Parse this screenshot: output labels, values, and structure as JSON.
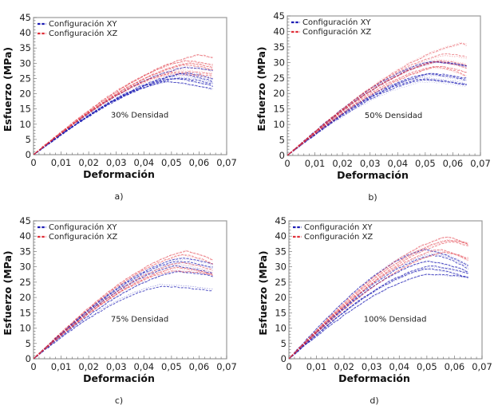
{
  "figure": {
    "colors": {
      "xy": "#1c1cb4",
      "xz": "#e0303a",
      "axis": "#9a9a9a",
      "text": "#222222"
    }
  },
  "chart_data": [
    {
      "type": "line",
      "panel_label": "a)",
      "annotation": "30% Densidad",
      "xlabel": "Deformación",
      "ylabel": "Esfuerzo (MPa)",
      "xlim": [
        0,
        0.07
      ],
      "ylim": [
        0,
        45
      ],
      "xticks": [
        "0",
        "0,01",
        "0,02",
        "0,03",
        "0,04",
        "0,05",
        "0,06",
        "0,07"
      ],
      "yticks": [
        "0",
        "5",
        "10",
        "15",
        "20",
        "25",
        "30",
        "35",
        "40",
        "45"
      ],
      "grid": false,
      "legend": {
        "position": "top-left",
        "entries": [
          "Configuración XY",
          "Configuración XZ"
        ]
      },
      "series": [
        {
          "name": "Configuración XY",
          "curves": [
            {
              "peak_x": 0.048,
              "peak_y": 24.0,
              "end_y": 21.5
            },
            {
              "peak_x": 0.05,
              "peak_y": 25.0,
              "end_y": 22.5
            },
            {
              "peak_x": 0.052,
              "peak_y": 25.5,
              "end_y": 23.5
            },
            {
              "peak_x": 0.053,
              "peak_y": 26.5,
              "end_y": 24.0
            },
            {
              "peak_x": 0.055,
              "peak_y": 27.0,
              "end_y": 25.0
            },
            {
              "peak_x": 0.055,
              "peak_y": 28.5,
              "end_y": 27.5
            }
          ]
        },
        {
          "name": "Configuración XZ",
          "curves": [
            {
              "peak_x": 0.06,
              "peak_y": 33.0,
              "end_y": 32.0
            },
            {
              "peak_x": 0.055,
              "peak_y": 31.0,
              "end_y": 29.5
            },
            {
              "peak_x": 0.056,
              "peak_y": 30.0,
              "end_y": 28.5
            },
            {
              "peak_x": 0.055,
              "peak_y": 29.0,
              "end_y": 27.5
            },
            {
              "peak_x": 0.052,
              "peak_y": 27.5,
              "end_y": 26.5
            },
            {
              "peak_x": 0.05,
              "peak_y": 26.5,
              "end_y": 25.5
            }
          ]
        }
      ]
    },
    {
      "type": "line",
      "panel_label": "b)",
      "annotation": "50% Densidad",
      "xlabel": "Deformación",
      "ylabel": "Esfuerzo (MPa)",
      "xlim": [
        0,
        0.07
      ],
      "ylim": [
        0,
        45
      ],
      "xticks": [
        "0",
        "0,01",
        "0,02",
        "0,03",
        "0,04",
        "0,05",
        "0,06",
        "0,07"
      ],
      "yticks": [
        "0",
        "5",
        "10",
        "15",
        "20",
        "25",
        "30",
        "35",
        "40",
        "45"
      ],
      "grid": false,
      "legend": {
        "position": "top-left",
        "entries": [
          "Configuración XY",
          "Configuración XZ"
        ]
      },
      "series": [
        {
          "name": "Configuración XY",
          "curves": [
            {
              "peak_x": 0.049,
              "peak_y": 24.0,
              "end_y": 22.5
            },
            {
              "peak_x": 0.048,
              "peak_y": 25.0,
              "end_y": 23.0
            },
            {
              "peak_x": 0.05,
              "peak_y": 26.0,
              "end_y": 24.0
            },
            {
              "peak_x": 0.052,
              "peak_y": 26.5,
              "end_y": 25.0
            },
            {
              "peak_x": 0.052,
              "peak_y": 30.5,
              "end_y": 29.0
            },
            {
              "peak_x": 0.054,
              "peak_y": 30.0,
              "end_y": 28.5
            }
          ]
        },
        {
          "name": "Configuración XZ",
          "curves": [
            {
              "peak_x": 0.063,
              "peak_y": 36.0,
              "end_y": 35.5
            },
            {
              "peak_x": 0.057,
              "peak_y": 32.5,
              "end_y": 31.5
            },
            {
              "peak_x": 0.055,
              "peak_y": 31.0,
              "end_y": 29.5
            },
            {
              "peak_x": 0.054,
              "peak_y": 30.0,
              "end_y": 28.0
            },
            {
              "peak_x": 0.055,
              "peak_y": 29.0,
              "end_y": 27.0
            },
            {
              "peak_x": 0.053,
              "peak_y": 28.5,
              "end_y": 25.5
            }
          ]
        }
      ]
    },
    {
      "type": "line",
      "panel_label": "c)",
      "annotation": "75% Densidad",
      "xlabel": "Deformación",
      "ylabel": "Esfuerzo (MPa)",
      "xlim": [
        0,
        0.07
      ],
      "ylim": [
        0,
        45
      ],
      "xticks": [
        "0",
        "0,01",
        "0,02",
        "0,03",
        "0,04",
        "0,05",
        "0,06",
        "0,07"
      ],
      "yticks": [
        "0",
        "5",
        "10",
        "15",
        "20",
        "25",
        "30",
        "35",
        "40",
        "45"
      ],
      "grid": false,
      "legend": {
        "position": "top-left",
        "entries": [
          "Configuración XY",
          "Configuración XZ"
        ]
      },
      "series": [
        {
          "name": "Configuración XY",
          "curves": [
            {
              "peak_x": 0.046,
              "peak_y": 24.0,
              "end_y": 22.5
            },
            {
              "peak_x": 0.052,
              "peak_y": 28.5,
              "end_y": 27.0
            },
            {
              "peak_x": 0.051,
              "peak_y": 30.5,
              "end_y": 28.0
            },
            {
              "peak_x": 0.052,
              "peak_y": 31.5,
              "end_y": 29.5
            },
            {
              "peak_x": 0.053,
              "peak_y": 32.5,
              "end_y": 30.5
            }
          ]
        },
        {
          "name": "Configuración XZ",
          "curves": [
            {
              "peak_x": 0.055,
              "peak_y": 35.0,
              "end_y": 32.0
            },
            {
              "peak_x": 0.054,
              "peak_y": 34.0,
              "end_y": 31.0
            },
            {
              "peak_x": 0.053,
              "peak_y": 31.0,
              "end_y": 28.5
            },
            {
              "peak_x": 0.052,
              "peak_y": 30.0,
              "end_y": 27.5
            },
            {
              "peak_x": 0.05,
              "peak_y": 29.0,
              "end_y": 28.0
            }
          ]
        }
      ]
    },
    {
      "type": "line",
      "panel_label": "d)",
      "annotation": "100% Densidad",
      "xlabel": "Deformación",
      "ylabel": "Esfuerzo (MPa)",
      "xlim": [
        0,
        0.07
      ],
      "ylim": [
        0,
        45
      ],
      "xticks": [
        "0",
        "0,01",
        "0,02",
        "0,03",
        "0,04",
        "0,05",
        "0,06",
        "0,07"
      ],
      "yticks": [
        "0",
        "5",
        "10",
        "15",
        "20",
        "25",
        "30",
        "35",
        "40",
        "45"
      ],
      "grid": false,
      "legend": {
        "position": "top-left",
        "entries": [
          "Configuración XY",
          "Configuración XZ"
        ]
      },
      "series": [
        {
          "name": "Configuración XY",
          "curves": [
            {
              "peak_x": 0.05,
              "peak_y": 27.5,
              "end_y": 26.5
            },
            {
              "peak_x": 0.05,
              "peak_y": 29.5,
              "end_y": 26.5
            },
            {
              "peak_x": 0.051,
              "peak_y": 30.0,
              "end_y": 27.5
            },
            {
              "peak_x": 0.05,
              "peak_y": 32.0,
              "end_y": 28.5
            },
            {
              "peak_x": 0.052,
              "peak_y": 34.0,
              "end_y": 29.5
            },
            {
              "peak_x": 0.049,
              "peak_y": 36.0,
              "end_y": 30.5
            }
          ]
        },
        {
          "name": "Configuración XZ",
          "curves": [
            {
              "peak_x": 0.057,
              "peak_y": 40.0,
              "end_y": 37.5
            },
            {
              "peak_x": 0.057,
              "peak_y": 39.0,
              "end_y": 38.0
            },
            {
              "peak_x": 0.058,
              "peak_y": 38.5,
              "end_y": 37.0
            },
            {
              "peak_x": 0.054,
              "peak_y": 35.5,
              "end_y": 32.0
            },
            {
              "peak_x": 0.056,
              "peak_y": 35.0,
              "end_y": 33.0
            }
          ]
        }
      ]
    }
  ]
}
